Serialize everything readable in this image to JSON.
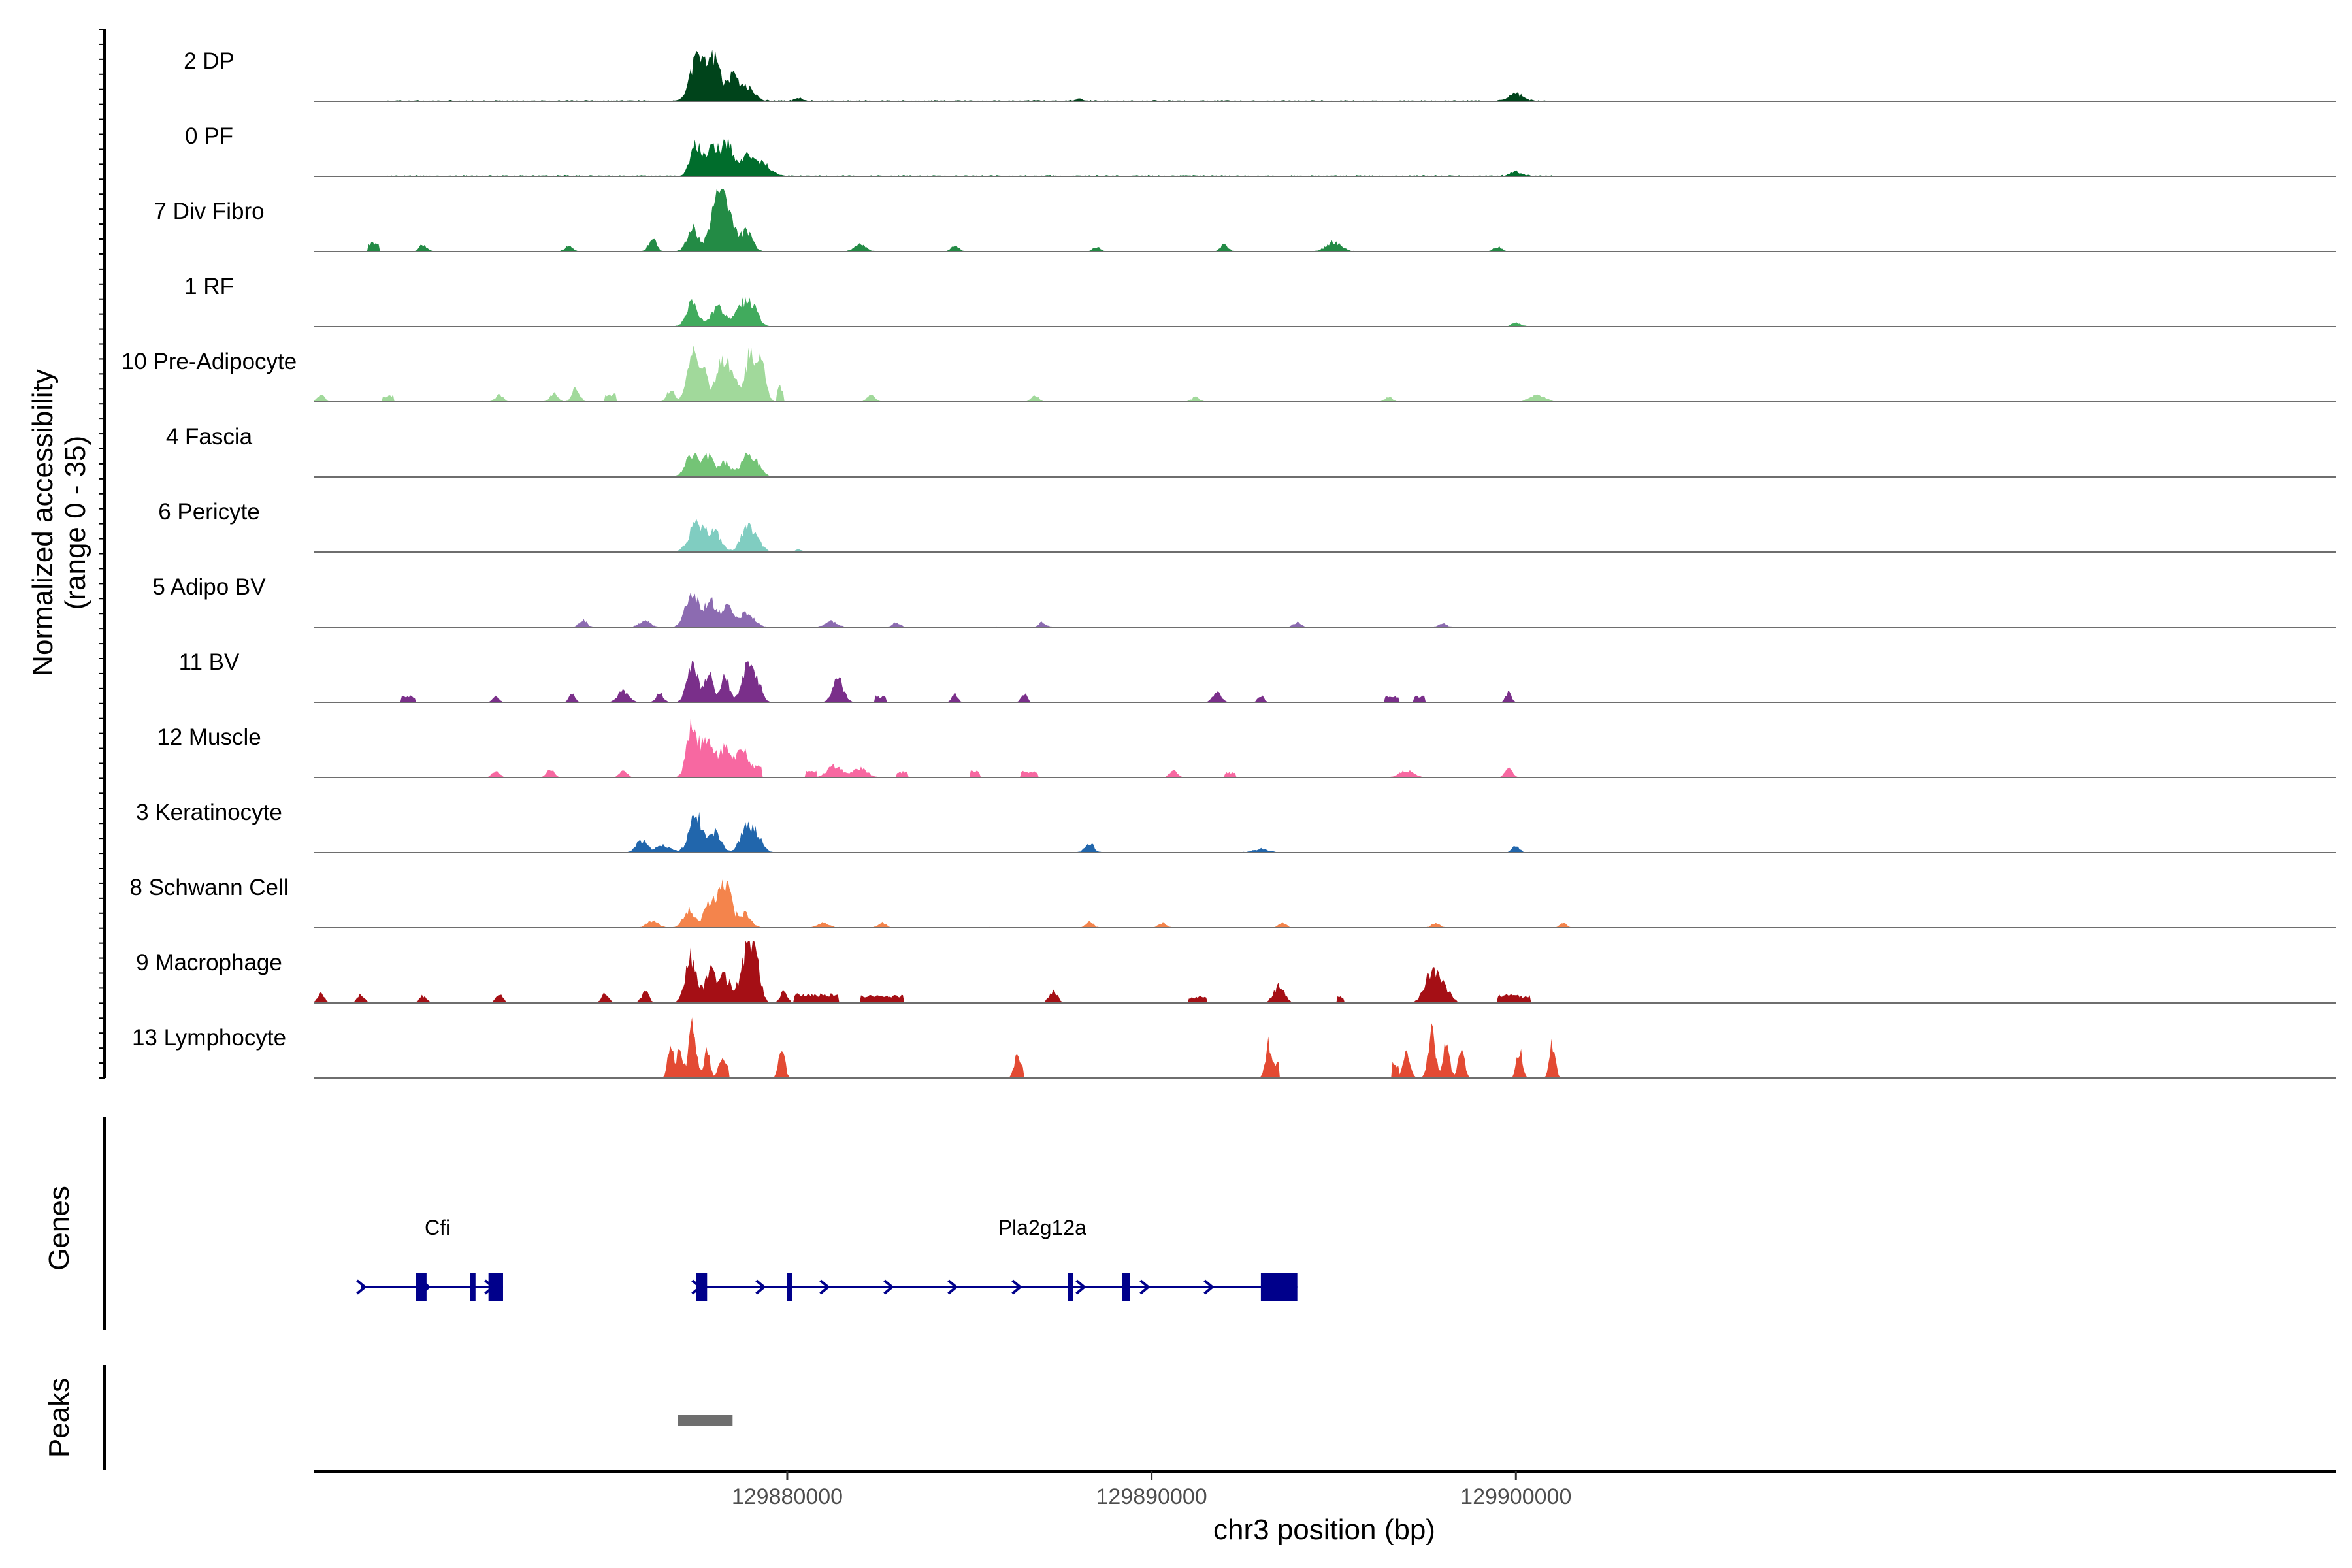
{
  "chart_data": {
    "type": "area",
    "title": "",
    "ylabel": "Normalized accessibility",
    "ylabel_range": "(range 0 - 35)",
    "ylim": [
      0,
      35
    ],
    "xlabel": "chr3 position (bp)",
    "xlim": [
      129867000,
      129922500
    ],
    "x_ticks": [
      129880000,
      129890000,
      129900000
    ],
    "x_tick_labels": [
      "129880000",
      "129890000",
      "129900000"
    ],
    "tracks": [
      {
        "name": "2 DP",
        "color": "#00441b",
        "peaks": [
          [
            129877500,
            180,
            32
          ],
          [
            129878050,
            150,
            26
          ],
          [
            129877850,
            180,
            20
          ],
          [
            129878500,
            150,
            20
          ],
          [
            129878900,
            200,
            12
          ],
          [
            129880300,
            100,
            3
          ],
          [
            129888000,
            80,
            2
          ],
          [
            129900000,
            200,
            6
          ]
        ],
        "base": 1
      },
      {
        "name": "0 PF",
        "color": "#006d2c",
        "peaks": [
          [
            129877500,
            150,
            28
          ],
          [
            129877950,
            150,
            22
          ],
          [
            129878350,
            180,
            28
          ],
          [
            129878950,
            200,
            18
          ],
          [
            129879400,
            200,
            8
          ],
          [
            129900000,
            150,
            4
          ]
        ],
        "base": 1
      },
      {
        "name": "7 Div Fibro",
        "color": "#238b45",
        "peaks": [
          [
            129877400,
            150,
            20
          ],
          [
            129878050,
            180,
            40
          ],
          [
            129878450,
            150,
            28
          ],
          [
            129878900,
            150,
            18
          ],
          [
            129876300,
            100,
            12
          ],
          [
            129878200,
            100,
            32
          ],
          [
            129892000,
            100,
            6
          ],
          [
            129895000,
            200,
            8
          ],
          [
            129899500,
            100,
            4
          ],
          [
            129882000,
            150,
            6
          ],
          [
            129884600,
            100,
            5
          ],
          [
            129888500,
            100,
            4
          ],
          [
            129870000,
            100,
            6
          ],
          [
            129874000,
            100,
            5
          ]
        ],
        "segments": [
          [
            129868500,
            129868800,
            7
          ]
        ],
        "base": 0.5
      },
      {
        "name": "1 RF",
        "color": "#41ab5d",
        "peaks": [
          [
            129877400,
            160,
            20
          ],
          [
            129878100,
            180,
            17
          ],
          [
            129878800,
            200,
            20
          ],
          [
            129879100,
            150,
            10
          ],
          [
            129900000,
            120,
            3
          ]
        ],
        "base": 0.5
      },
      {
        "name": "10 Pre-Adipocyte",
        "color": "#a1d99b",
        "peaks": [
          [
            129877400,
            150,
            40
          ],
          [
            129877700,
            120,
            25
          ],
          [
            129878200,
            150,
            40
          ],
          [
            129878500,
            120,
            25
          ],
          [
            129879000,
            150,
            42
          ],
          [
            129879300,
            120,
            28
          ],
          [
            129876800,
            100,
            10
          ],
          [
            129874200,
            100,
            12
          ],
          [
            129873600,
            100,
            8
          ],
          [
            129872100,
            100,
            6
          ],
          [
            129882300,
            100,
            6
          ],
          [
            129886800,
            100,
            5
          ],
          [
            129891200,
            100,
            4
          ],
          [
            129896500,
            100,
            4
          ],
          [
            129900600,
            200,
            6
          ],
          [
            129867200,
            100,
            6
          ]
        ],
        "segments": [
          [
            129879700,
            129879900,
            12
          ],
          [
            129868900,
            129869200,
            5
          ],
          [
            129875000,
            129875300,
            6
          ]
        ],
        "base": 0.5
      },
      {
        "name": "4 Fascia",
        "color": "#74c476",
        "peaks": [
          [
            129877400,
            180,
            20
          ],
          [
            129877850,
            150,
            17
          ],
          [
            129878300,
            150,
            13
          ],
          [
            129878900,
            180,
            18
          ],
          [
            129879200,
            150,
            8
          ]
        ],
        "base": 0.3
      },
      {
        "name": "6 Pericyte",
        "color": "#80cdc1",
        "peaks": [
          [
            129877500,
            200,
            24
          ],
          [
            129878000,
            180,
            18
          ],
          [
            129878900,
            180,
            20
          ],
          [
            129879200,
            150,
            7
          ],
          [
            129880300,
            100,
            2
          ]
        ],
        "base": 0.3
      },
      {
        "name": "5 Adipo BV",
        "color": "#8c6bb1",
        "peaks": [
          [
            129877400,
            180,
            30
          ],
          [
            129877900,
            150,
            24
          ],
          [
            129878350,
            150,
            18
          ],
          [
            129878900,
            200,
            12
          ],
          [
            129876100,
            150,
            5
          ],
          [
            129874400,
            100,
            6
          ],
          [
            129881200,
            150,
            5
          ],
          [
            129883000,
            100,
            4
          ],
          [
            129887000,
            100,
            4
          ],
          [
            129894000,
            100,
            4
          ],
          [
            129898000,
            100,
            3
          ]
        ],
        "base": 0.5
      },
      {
        "name": "11 BV",
        "color": "#7a2f8a",
        "peaks": [
          [
            129877400,
            150,
            32
          ],
          [
            129877850,
            120,
            24
          ],
          [
            129878300,
            120,
            22
          ],
          [
            129878900,
            150,
            30
          ],
          [
            129879200,
            120,
            16
          ],
          [
            129881400,
            150,
            20
          ],
          [
            129875500,
            150,
            10
          ],
          [
            129876500,
            100,
            8
          ],
          [
            129874100,
            80,
            8
          ],
          [
            129872000,
            80,
            6
          ],
          [
            129884600,
            80,
            8
          ],
          [
            129886500,
            80,
            8
          ],
          [
            129891800,
            120,
            8
          ],
          [
            129893000,
            80,
            6
          ],
          [
            129899800,
            80,
            9
          ]
        ],
        "segments": [
          [
            129869400,
            129869800,
            5
          ],
          [
            129882400,
            129882700,
            5
          ],
          [
            129896400,
            129896800,
            5
          ],
          [
            129897200,
            129897500,
            5
          ]
        ],
        "base": 0
      },
      {
        "name": "12 Muscle",
        "color": "#f768a1",
        "peaks": [
          [
            129877400,
            150,
            45
          ],
          [
            129877800,
            150,
            30
          ],
          [
            129878300,
            200,
            28
          ],
          [
            129878800,
            150,
            22
          ],
          [
            129881300,
            200,
            10
          ],
          [
            129882000,
            200,
            8
          ],
          [
            129875500,
            100,
            7
          ],
          [
            129873500,
            100,
            7
          ],
          [
            129872000,
            100,
            6
          ],
          [
            129890600,
            100,
            7
          ],
          [
            129899800,
            100,
            10
          ],
          [
            129897000,
            200,
            6
          ]
        ],
        "segments": [
          [
            129879000,
            129879300,
            10
          ],
          [
            129880500,
            129880800,
            5
          ],
          [
            129883000,
            129883300,
            5
          ],
          [
            129885000,
            129885300,
            5
          ],
          [
            129886400,
            129886900,
            5
          ],
          [
            129892000,
            129892300,
            4
          ]
        ],
        "base": 0
      },
      {
        "name": "3 Keratinocyte",
        "color": "#2166ac",
        "peaks": [
          [
            129877500,
            180,
            32
          ],
          [
            129878050,
            150,
            18
          ],
          [
            129878900,
            180,
            22
          ],
          [
            129879200,
            150,
            10
          ],
          [
            129876000,
            150,
            10
          ],
          [
            129876600,
            200,
            6
          ],
          [
            129888300,
            120,
            8
          ],
          [
            129900000,
            100,
            5
          ],
          [
            129893000,
            200,
            3
          ]
        ],
        "base": 0.5
      },
      {
        "name": "8 Schwann Cell",
        "color": "#f4844c",
        "peaks": [
          [
            129877300,
            150,
            15
          ],
          [
            129877900,
            180,
            22
          ],
          [
            129878300,
            150,
            40
          ],
          [
            129878800,
            180,
            12
          ],
          [
            129876300,
            150,
            6
          ],
          [
            129881000,
            150,
            4
          ],
          [
            129882600,
            100,
            4
          ],
          [
            129888300,
            100,
            5
          ],
          [
            129890300,
            100,
            4
          ],
          [
            129893600,
            100,
            4
          ],
          [
            129897800,
            100,
            4
          ],
          [
            129901300,
            100,
            4
          ]
        ],
        "base": 0.5
      },
      {
        "name": "9 Macrophage",
        "color": "#a50f15",
        "peaks": [
          [
            129877350,
            150,
            40
          ],
          [
            129877900,
            150,
            30
          ],
          [
            129878300,
            150,
            22
          ],
          [
            129878900,
            180,
            45
          ],
          [
            129879150,
            120,
            30
          ],
          [
            129876100,
            100,
            10
          ],
          [
            129875000,
            100,
            8
          ],
          [
            129879900,
            100,
            10
          ],
          [
            129887300,
            120,
            10
          ],
          [
            129893500,
            150,
            15
          ],
          [
            129897700,
            200,
            28
          ],
          [
            129898100,
            150,
            10
          ],
          [
            129899800,
            120,
            8
          ],
          [
            129867200,
            100,
            8
          ],
          [
            129868300,
            100,
            7
          ],
          [
            129870000,
            100,
            6
          ],
          [
            129872100,
            100,
            7
          ]
        ],
        "segments": [
          [
            129880200,
            129881400,
            7
          ],
          [
            129882000,
            129883200,
            6
          ],
          [
            129891000,
            129891500,
            5
          ],
          [
            129895100,
            129895300,
            5
          ],
          [
            129899500,
            129900400,
            6
          ]
        ],
        "base": 0
      },
      {
        "name": "13 Lymphocyte",
        "color": "#e34a33",
        "peaks": [
          [
            129877400,
            100,
            50
          ],
          [
            129877050,
            80,
            25
          ],
          [
            129876800,
            80,
            30
          ],
          [
            129877800,
            80,
            25
          ],
          [
            129878200,
            80,
            20
          ],
          [
            129879850,
            80,
            30
          ],
          [
            129886300,
            80,
            20
          ],
          [
            129893200,
            80,
            30
          ],
          [
            129897000,
            100,
            20
          ],
          [
            129897700,
            100,
            40
          ],
          [
            129898100,
            80,
            35
          ],
          [
            129898500,
            80,
            30
          ],
          [
            129900100,
            80,
            25
          ],
          [
            129901000,
            80,
            30
          ]
        ],
        "segments": [
          [
            129878200,
            129878400,
            12
          ],
          [
            129886200,
            129886500,
            10
          ],
          [
            129893100,
            129893500,
            12
          ],
          [
            129896600,
            129896800,
            12
          ]
        ],
        "base": 0
      }
    ],
    "genes_panel": {
      "label": "Genes",
      "color": "#00008b",
      "genes": [
        {
          "name": "Cfi",
          "strand": "+",
          "start": 129868300,
          "end": 129872200,
          "exons": [
            [
              129869800,
              129870100
            ],
            [
              129871300,
              129871400
            ],
            [
              129871800,
              129872200
            ]
          ]
        },
        {
          "name": "Pla2g12a",
          "strand": "+",
          "start": 129877500,
          "end": 129894000,
          "exons": [
            [
              129877500,
              129877800
            ],
            [
              129880000,
              129880100
            ],
            [
              129887700,
              129887800
            ],
            [
              129889200,
              129889400
            ],
            [
              129893000,
              129894000
            ]
          ]
        }
      ]
    },
    "peaks_panel": {
      "label": "Peaks",
      "color": "#6e6e6e",
      "ranges": [
        [
          129877000,
          129878500
        ]
      ]
    }
  }
}
